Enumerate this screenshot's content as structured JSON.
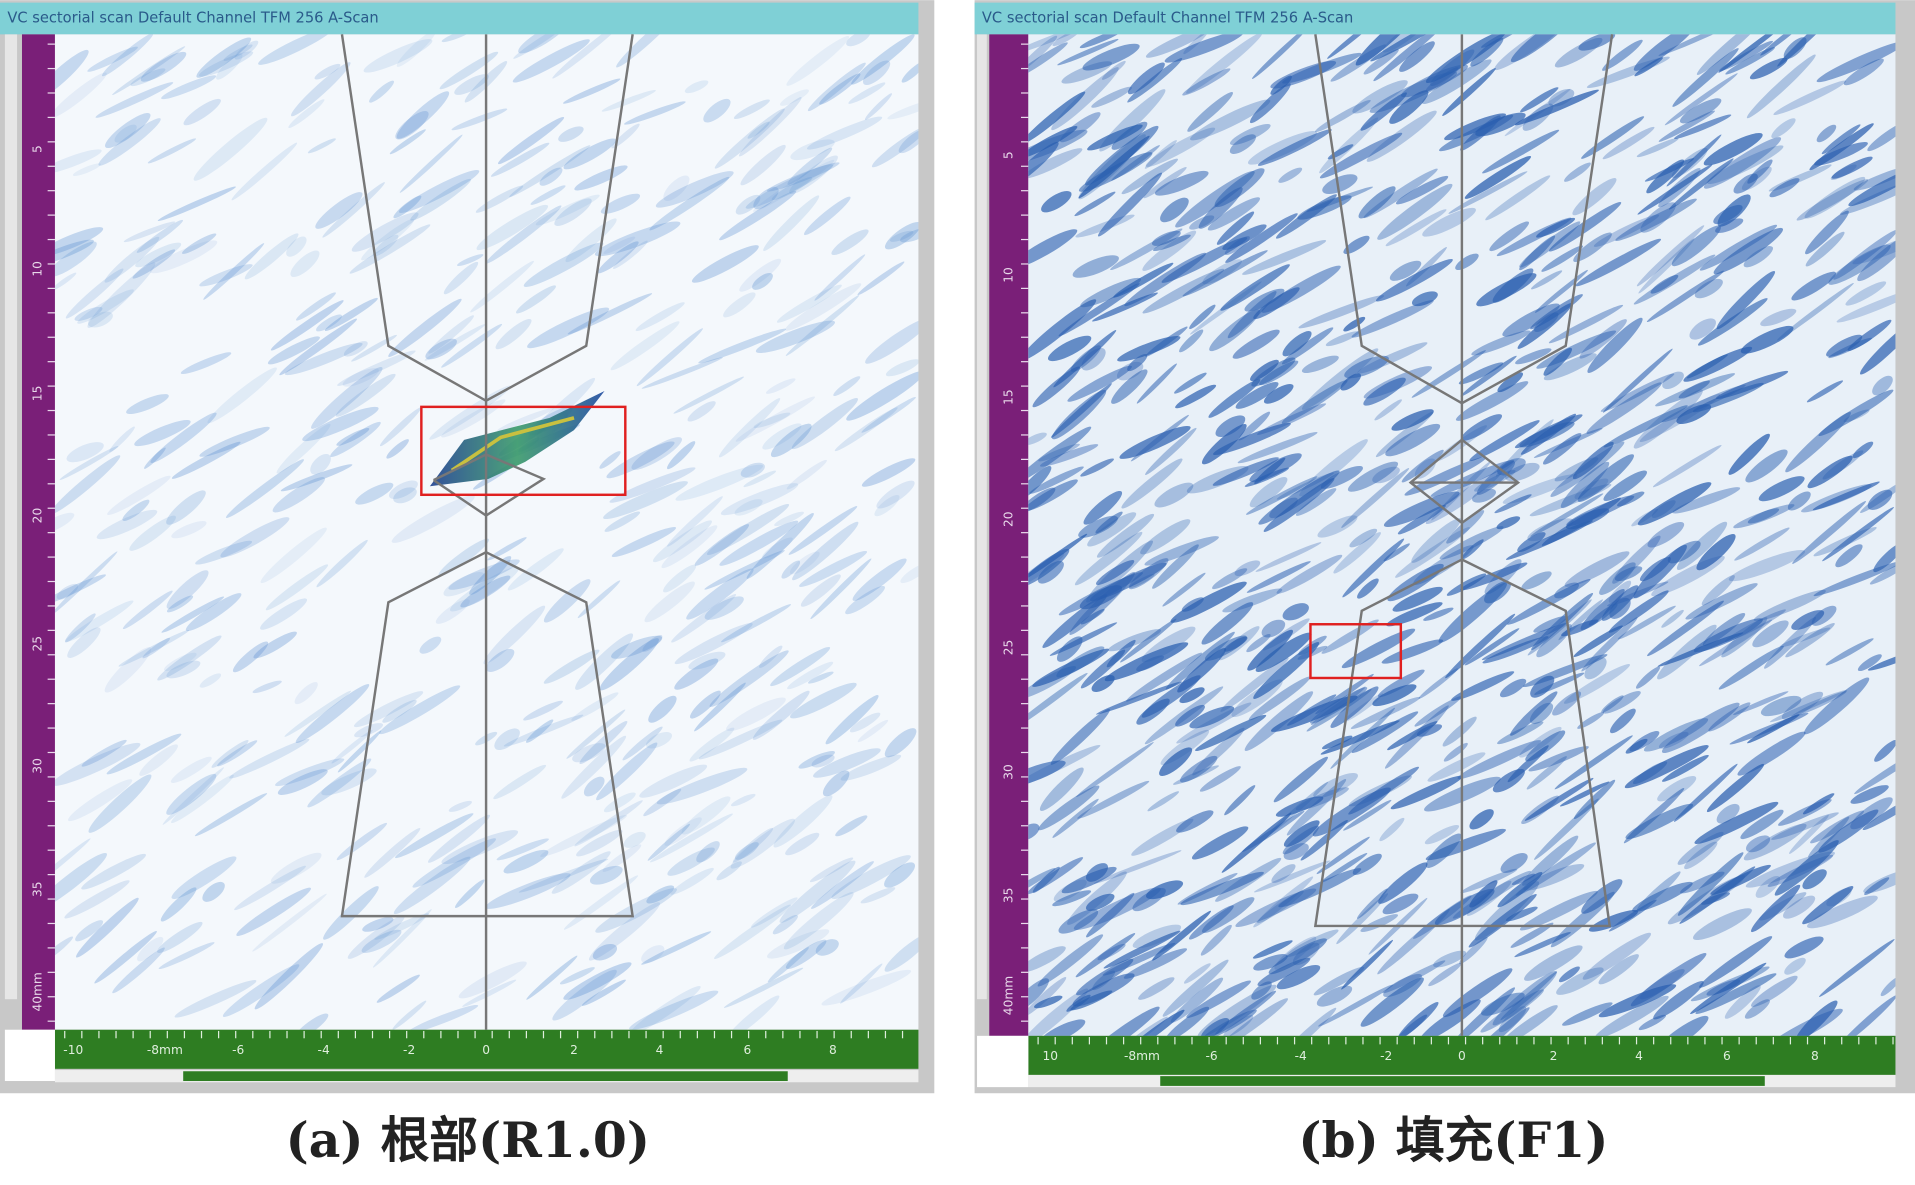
{
  "panels": [
    {
      "header": "VC sectorial scan Default Channel TFM 256 A-Scan",
      "y_ruler_labels": [
        "5",
        "10",
        "15",
        "20",
        "25",
        "30",
        "35",
        "40mm"
      ],
      "x_ruler_labels": [
        "-10",
        "-8mm",
        "-6",
        "-4",
        "-2",
        "0",
        "2",
        "4",
        "6",
        "8"
      ],
      "caption": "(a) 根部(R1.0)"
    },
    {
      "header": "VC sectorial scan Default Channel TFM 256 A-Scan",
      "y_ruler_labels": [
        "5",
        "10",
        "15",
        "20",
        "25",
        "30",
        "35",
        "40mm"
      ],
      "x_ruler_labels": [
        "10",
        "-8mm",
        "-6",
        "-4",
        "-2",
        "0",
        "2",
        "4",
        "6",
        "8"
      ],
      "caption": "(b) 填充(F1)"
    }
  ]
}
